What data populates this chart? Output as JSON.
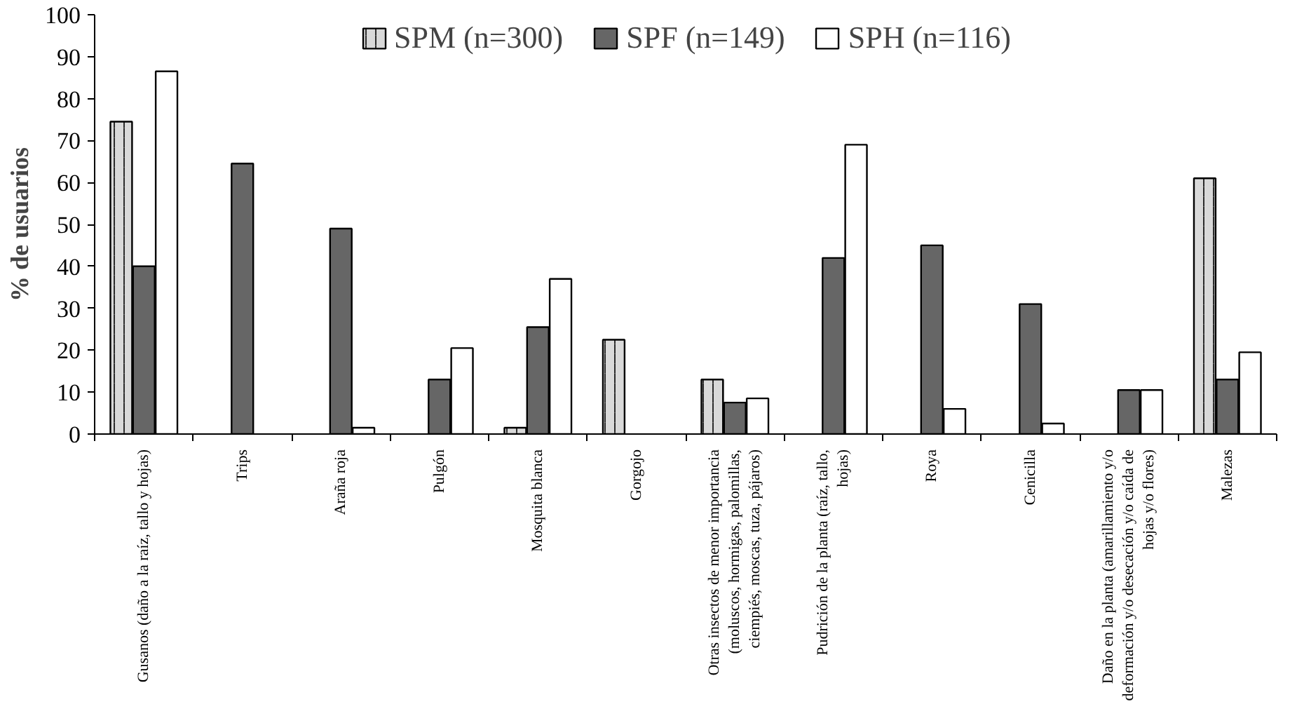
{
  "chart_data": {
    "type": "bar",
    "ylabel": "% de usuarios",
    "categories": [
      "Gusanos (daño a la raíz, tallo y hojas)",
      "Trips",
      "Araña roja",
      "Pulgón",
      "Mosquita blanca",
      "Gorgojo",
      "Otras insectos de menor importancia (moluscos, hormigas, palomillas, ciempiés, moscas, tuza, pájaros)",
      "Pudrición de la planta (raíz, tallo, hojas)",
      "Roya",
      "Cenicilla",
      "Daño en la planta (amarillamiento y/o deformación y/o desecación y/o caída de hojas y/o flores)",
      "Malezas"
    ],
    "series": [
      {
        "name": "SPM (n=300)",
        "color": "#d9d9d9",
        "values": [
          74.5,
          null,
          null,
          null,
          1.5,
          22.5,
          13,
          null,
          null,
          null,
          null,
          61
        ]
      },
      {
        "name": "SPF (n=149)",
        "color": "#666666",
        "values": [
          40,
          64.5,
          49,
          13,
          25.5,
          null,
          7.5,
          42,
          45,
          31,
          10.5,
          13
        ]
      },
      {
        "name": "SPH (n=116)",
        "color": "#ffffff",
        "values": [
          86.5,
          null,
          1.5,
          20.5,
          37,
          null,
          8.5,
          69,
          6,
          2.5,
          10.5,
          19.5
        ]
      }
    ],
    "ylim": [
      0,
      100
    ],
    "yticks": [
      0,
      10,
      20,
      30,
      40,
      50,
      60,
      70,
      80,
      90,
      100
    ],
    "grid": false,
    "legend": "top"
  }
}
